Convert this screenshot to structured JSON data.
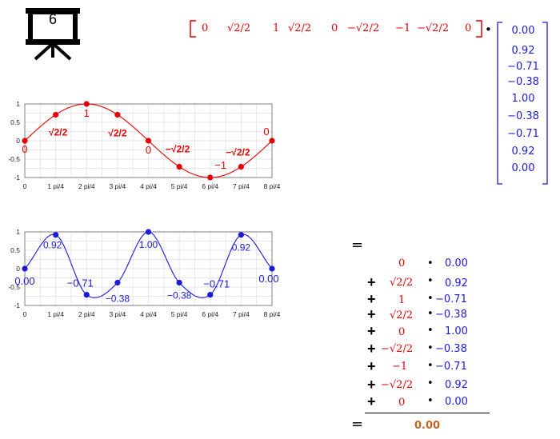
{
  "slide": {
    "number": "6",
    "icon": "presentation-board-icon"
  },
  "row_vector": [
    "0",
    "√2/2",
    "1",
    "√2/2",
    "0",
    "−√2/2",
    "−1",
    "−√2/2",
    "0"
  ],
  "dot_operator": "•",
  "column_vector": [
    "0.00",
    "0.92",
    "−0.71",
    "−0.38",
    "1.00",
    "−0.38",
    "−0.71",
    "0.92",
    "0.00"
  ],
  "equals_sign": "=",
  "plus_sign": "+",
  "result": "0.00",
  "chart_data": [
    {
      "type": "line",
      "series": [
        {
          "color": "#e60000",
          "x": [
            0,
            1,
            2,
            3,
            4,
            5,
            6,
            7,
            8
          ],
          "values": [
            0,
            0.707,
            1,
            0.707,
            0,
            -0.707,
            -1,
            -0.707,
            0
          ]
        }
      ],
      "point_labels": [
        "0",
        "√2/2",
        "1",
        "√2/2",
        "0",
        "−√2/2",
        "−1",
        "−√2/2",
        "0"
      ],
      "x_tick_labels": [
        "0",
        "1 pi/4",
        "2 pi/4",
        "3 pi/4",
        "4 pi/4",
        "5 pi/4",
        "6 pi/4",
        "7 pi/4",
        "8 pi/4"
      ],
      "y_tick_labels": [
        "1",
        "0.5",
        "0",
        "-0.5",
        "-1"
      ],
      "ylim": [
        -1,
        1
      ],
      "xlim": [
        0,
        8
      ],
      "grid": true
    },
    {
      "type": "line",
      "series": [
        {
          "color": "#1a1adc",
          "x": [
            0,
            1,
            2,
            3,
            4,
            5,
            6,
            7,
            8
          ],
          "values": [
            0,
            0.92,
            -0.71,
            -0.38,
            1.0,
            -0.38,
            -0.71,
            0.92,
            0
          ]
        }
      ],
      "point_labels": [
        "0.00",
        "0.92",
        "−0.71",
        "−0.38",
        "1.00",
        "−0.38",
        "−0.71",
        "0.92",
        "0.00"
      ],
      "x_tick_labels": [
        "0",
        "1 pi/4",
        "2 pi/4",
        "3 pi/4",
        "4 pi/4",
        "5 pi/4",
        "6 pi/4",
        "7 pi/4",
        "8 pi/4"
      ],
      "y_tick_labels": [
        "1",
        "0.5",
        "0",
        "-0.5",
        "-1"
      ],
      "ylim": [
        -1,
        1
      ],
      "xlim": [
        0,
        8
      ],
      "grid": true
    }
  ]
}
